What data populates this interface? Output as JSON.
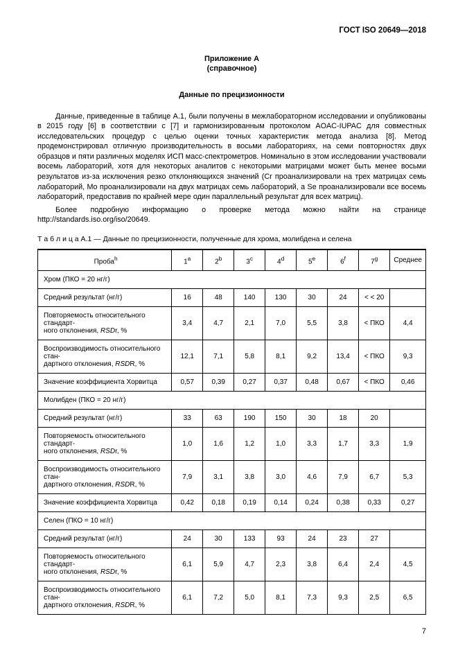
{
  "doc_id": "ГОСТ ISO 20649—2018",
  "annex": {
    "title": "Приложение А",
    "type": "(справочное)"
  },
  "section_title": "Данные по прецизионности",
  "para1": "Данные, приведенные в таблице А.1, были получены в межлабораторном исследовании и опубликованы в 2015 году [6] в соответствии с [7] и гармонизированным протоколом AOAC-IUPAC для совместных исследовательских процедур с целью оценки точных характеристик метода анализа [8]. Метод продемонстрировал отличную производительность в восьми лабораториях, на семи повторностях двух образцов и пяти различных моделях ИСП масс-спектрометров. Номинально в этом исследовании участвовали восемь лабораторий, хотя для некоторых аналитов с некоторыми матрицами может быть менее восьми результатов из-за исключения резко отклоняющихся значений (Cr проанализировали на трех матрицах семь лабораторий, Mo проанализировали на двух матрицах семь лабораторий, а Se проанализировали все восемь лабораторий, предоставив по крайней мере один параллельный результат для всех матриц).",
  "para2": "Более подробную информацию о проверке метода можно найти на странице http://standards.iso.org/iso/20649.",
  "table_caption_prefix": "Т а б л и ц а",
  "table_caption_rest": "  А.1 — Данные по прецизионности, полученные для хрома, молибдена и селена",
  "columns": {
    "c0": "Проба",
    "c0_sup": "h",
    "heads": [
      "1",
      "2",
      "3",
      "4",
      "5",
      "6",
      "7"
    ],
    "sups": [
      "a",
      "b",
      "c",
      "d",
      "e",
      "f",
      "g"
    ],
    "avg": "Среднее"
  },
  "groups": [
    {
      "title": "Хром (ПКО = 20 нг/г)",
      "rows": [
        {
          "label": "Средний результат (нг/г)",
          "vals": [
            "16",
            "48",
            "140",
            "130",
            "30",
            "24",
            "< < 20",
            ""
          ]
        },
        {
          "label_html": "Повторяемость относительного стандарт-<br>ного отклонения, <span class=\"italic\">RSD</span>r, %",
          "vals": [
            "3,4",
            "4,7",
            "2,1",
            "7,0",
            "5,5",
            "3,8",
            "< ПКО",
            "4,4"
          ]
        },
        {
          "label_html": "Воспроизводимость относительного стан-<br>дартного отклонения, <span class=\"italic\">RSD</span>R, %",
          "vals": [
            "12,1",
            "7,1",
            "5,8",
            "8,1",
            "9,2",
            "13,4",
            "< ПКО",
            "9,3"
          ]
        },
        {
          "label": "Значение коэффициента Хорвитца",
          "vals": [
            "0,57",
            "0,39",
            "0,27",
            "0,37",
            "0,48",
            "0,67",
            "< ПКО",
            "0,46"
          ]
        }
      ]
    },
    {
      "title": "Молибден (ПКО = 20 нг/г)",
      "rows": [
        {
          "label": "Средний результат (нг/г)",
          "vals": [
            "33",
            "63",
            "190",
            "150",
            "30",
            "18",
            "20",
            ""
          ]
        },
        {
          "label_html": "Повторяемость относительного стандарт-<br>ного отклонения, <span class=\"italic\">RSD</span>r, %",
          "vals": [
            "1,0",
            "1,6",
            "1,2",
            "1,0",
            "3,3",
            "1,7",
            "3,3",
            "1,9"
          ]
        },
        {
          "label_html": "Воспроизводимость относительного стан-<br>дартного отклонения, <span class=\"italic\">RSD</span>R, %",
          "vals": [
            "7,9",
            "3,1",
            "3,8",
            "3,0",
            "4,6",
            "7,9",
            "6,7",
            "5,3"
          ]
        },
        {
          "label": "Значение коэффициента Хорвитца",
          "vals": [
            "0,42",
            "0,18",
            "0,19",
            "0,14",
            "0,24",
            "0,38",
            "0,33",
            "0,27"
          ]
        }
      ]
    },
    {
      "title": "Селен (ПКО = 10 нг/г)",
      "rows": [
        {
          "label": "Средний результат (нг/г)",
          "vals": [
            "24",
            "30",
            "133",
            "93",
            "24",
            "23",
            "27",
            ""
          ]
        },
        {
          "label_html": "Повторяемость относительного стандарт-<br>ного отклонения, <span class=\"italic\">RSD</span>r, %",
          "vals": [
            "6,1",
            "5,9",
            "4,7",
            "2,3",
            "3,8",
            "6,4",
            "2,4",
            "4,5"
          ]
        },
        {
          "label_html": "Воспроизводимость относительного стан-<br>дартного отклонения, <span class=\"italic\">RSD</span>R, %",
          "vals": [
            "6,1",
            "7,2",
            "5,0",
            "8,1",
            "7,3",
            "9,3",
            "2,5",
            "6,5"
          ]
        }
      ]
    }
  ],
  "page_number": "7"
}
